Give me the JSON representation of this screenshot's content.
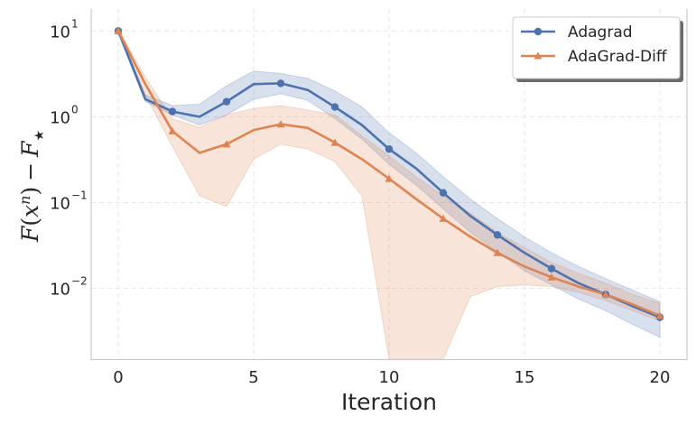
{
  "chart_data": {
    "type": "line",
    "title": "",
    "xlabel": "Iteration",
    "ylabel": "F(x^n) − F★",
    "ylabel_parts": {
      "f": "F",
      "lp": "(",
      "x": "x",
      "n": "n",
      "rp": ")",
      "minus": "−",
      "fstar": "F",
      "star": "★"
    },
    "yscale": "log",
    "xlim": [
      -1,
      21
    ],
    "ylim": [
      0.0015,
      18
    ],
    "grid": true,
    "legend_position": "top-right",
    "x_ticks": [
      0,
      5,
      10,
      15,
      20
    ],
    "x_tick_labels": [
      "0",
      "5",
      "10",
      "15",
      "20"
    ],
    "y_ticks": [
      0.01,
      0.1,
      1,
      10
    ],
    "y_tick_labels": [
      {
        "base": "10",
        "exp": "−2"
      },
      {
        "base": "10",
        "exp": "−1"
      },
      {
        "base": "10",
        "exp": "0"
      },
      {
        "base": "10",
        "exp": "1"
      }
    ],
    "series": [
      {
        "name": "Adagrad",
        "color": "#4c72b0",
        "marker": "circle",
        "x": [
          0,
          1,
          2,
          3,
          4,
          5,
          6,
          7,
          8,
          9,
          10,
          11,
          12,
          13,
          14,
          15,
          16,
          17,
          18,
          19,
          20
        ],
        "y": [
          10,
          1.6,
          1.15,
          1.0,
          1.5,
          2.4,
          2.45,
          2.05,
          1.3,
          0.8,
          0.42,
          0.25,
          0.13,
          0.07,
          0.042,
          0.026,
          0.017,
          0.0115,
          0.0085,
          0.0062,
          0.0046
        ],
        "lower": [
          9.5,
          1.5,
          1.05,
          0.8,
          1.05,
          1.6,
          1.85,
          1.55,
          0.95,
          0.55,
          0.28,
          0.16,
          0.085,
          0.045,
          0.027,
          0.016,
          0.011,
          0.0075,
          0.0055,
          0.0038,
          0.0027
        ],
        "upper": [
          10.5,
          1.8,
          1.35,
          1.4,
          2.3,
          3.4,
          3.2,
          2.8,
          2.0,
          1.3,
          0.65,
          0.38,
          0.2,
          0.11,
          0.065,
          0.04,
          0.026,
          0.018,
          0.013,
          0.0095,
          0.007
        ],
        "marker_x": [
          0,
          2,
          4,
          6,
          8,
          10,
          12,
          14,
          16,
          18,
          20
        ]
      },
      {
        "name": "AdaGrad-Diff",
        "color": "#dd8452",
        "marker": "triangle",
        "x": [
          0,
          1,
          2,
          3,
          4,
          5,
          6,
          7,
          8,
          9,
          10,
          11,
          12,
          13,
          14,
          15,
          16,
          17,
          18,
          19,
          20
        ],
        "y": [
          10,
          2.4,
          0.68,
          0.38,
          0.48,
          0.7,
          0.82,
          0.74,
          0.5,
          0.32,
          0.19,
          0.11,
          0.065,
          0.04,
          0.026,
          0.018,
          0.0135,
          0.0105,
          0.0085,
          0.0065,
          0.0048
        ],
        "lower": [
          9.5,
          1.8,
          0.45,
          0.12,
          0.09,
          0.32,
          0.48,
          0.42,
          0.3,
          0.12,
          0.0015,
          0.0015,
          0.0015,
          0.008,
          0.0105,
          0.011,
          0.0105,
          0.009,
          0.0072,
          0.0055,
          0.0042
        ],
        "upper": [
          10.5,
          2.9,
          0.95,
          0.75,
          1.05,
          1.25,
          1.35,
          1.2,
          1.05,
          0.6,
          0.35,
          0.2,
          0.12,
          0.075,
          0.045,
          0.03,
          0.02,
          0.015,
          0.0115,
          0.0085,
          0.0067
        ],
        "marker_x": [
          0,
          2,
          4,
          6,
          8,
          10,
          12,
          14,
          16,
          18,
          20
        ]
      }
    ]
  }
}
